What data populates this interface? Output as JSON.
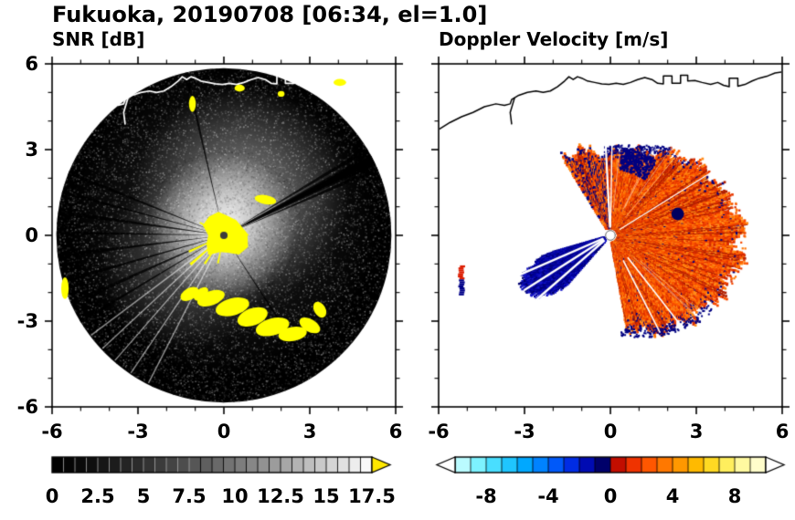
{
  "figure": {
    "title": "Fukuoka, 20190708 [06:34, el=1.0]"
  },
  "chart_data": [
    {
      "type": "heatmap",
      "title": "SNR [dB]",
      "xlim": [
        -6,
        6
      ],
      "ylim": [
        -6,
        6
      ],
      "xticks": [
        -6,
        -3,
        0,
        3,
        6
      ],
      "yticks": [
        6,
        3,
        0,
        -3,
        -6
      ],
      "minor_step": 1,
      "grid": false,
      "colorbar": {
        "range": [
          0,
          17.5
        ],
        "labels": [
          0,
          2.5,
          5,
          7.5,
          10,
          12.5,
          15,
          17.5
        ],
        "segment_step": 0.625,
        "cmap": "grayscale",
        "over_arrow_color": "#ffe800"
      },
      "scene": {
        "disk": {
          "cx": 0,
          "cy": 0,
          "r": 5.85,
          "color": "#000000"
        },
        "center_echo_color": "#ffff00",
        "center_dot_color": "#3c3c3c",
        "dark_spokes": [
          [
            27,
            2.2
          ],
          [
            23.5,
            0.7
          ],
          [
            31,
            0.7
          ],
          [
            103,
            0.5
          ],
          [
            158,
            0.6
          ],
          [
            165,
            0.5
          ],
          [
            172,
            0.8
          ],
          [
            179,
            0.5
          ],
          [
            187,
            0.7
          ],
          [
            196,
            0.6
          ],
          [
            204,
            0.8
          ],
          [
            211,
            0.5
          ],
          [
            -57,
            0.5
          ]
        ],
        "bright_rays": [
          217,
          223,
          229,
          236,
          243
        ],
        "yellow_patches": [
          [
            -0.45,
            -2.2,
            0.5,
            0.25,
            -20
          ],
          [
            0.3,
            -2.5,
            0.6,
            0.3,
            -15
          ],
          [
            1.0,
            -2.85,
            0.55,
            0.3,
            -20
          ],
          [
            1.7,
            -3.2,
            0.6,
            0.3,
            -15
          ],
          [
            2.4,
            -3.45,
            0.5,
            0.25,
            -10
          ],
          [
            3.0,
            -3.15,
            0.4,
            0.22,
            30
          ],
          [
            3.35,
            -2.6,
            0.3,
            0.2,
            60
          ],
          [
            -1.2,
            -2.05,
            0.35,
            0.2,
            -30
          ],
          [
            -0.8,
            -2.05,
            0.3,
            0.18,
            -40
          ],
          [
            -5.55,
            -1.85,
            0.13,
            0.38,
            0
          ],
          [
            1.45,
            1.25,
            0.38,
            0.16,
            10
          ],
          [
            -1.1,
            4.6,
            0.12,
            0.28,
            0
          ],
          [
            0.55,
            5.15,
            0.18,
            0.12,
            0
          ],
          [
            2.0,
            4.95,
            0.12,
            0.1,
            0
          ],
          [
            4.05,
            5.35,
            0.22,
            0.12,
            0
          ]
        ]
      }
    },
    {
      "type": "heatmap",
      "title": "Doppler Velocity [m/s]",
      "xlim": [
        -6,
        6
      ],
      "ylim": [
        -6,
        6
      ],
      "xticks": [
        -6,
        -3,
        0,
        3,
        6
      ],
      "yticks": [
        6,
        3,
        0,
        -3,
        -6
      ],
      "minor_step": 1,
      "grid": false,
      "colorbar": {
        "range": [
          -10,
          10
        ],
        "labels": [
          -8,
          -4,
          0,
          4,
          8
        ],
        "segment_step": 1,
        "under_arrow_color": "#ffffff",
        "over_arrow_color": "#ffffff",
        "cmap_stops": [
          [
            -10,
            "#d8ffff"
          ],
          [
            -8.5,
            "#7df2ff"
          ],
          [
            -7,
            "#2fd4ff"
          ],
          [
            -5.5,
            "#00a8ff"
          ],
          [
            -4,
            "#0070ff"
          ],
          [
            -2.8,
            "#0038f0"
          ],
          [
            -1.8,
            "#0010c8"
          ],
          [
            -0.8,
            "#000080"
          ],
          [
            -0.05,
            "#000048"
          ],
          [
            0.05,
            "#a00000"
          ],
          [
            0.8,
            "#d81800"
          ],
          [
            2,
            "#ff4600"
          ],
          [
            3.2,
            "#ff6e00"
          ],
          [
            4.5,
            "#ff9800"
          ],
          [
            5.8,
            "#ffc400"
          ],
          [
            7,
            "#ffe83c"
          ],
          [
            8.5,
            "#fff9a0"
          ],
          [
            10,
            "#ffffe0"
          ]
        ]
      },
      "scene": {
        "fan": {
          "a0": -80,
          "a1": 122,
          "rmin": 0.28,
          "cp": [
            [
              -80,
              3.3
            ],
            [
              -60,
              3.7
            ],
            [
              -40,
              4.1
            ],
            [
              -25,
              4.35
            ],
            [
              -10,
              4.55
            ],
            [
              5,
              4.45
            ],
            [
              20,
              4.25
            ],
            [
              35,
              3.95
            ],
            [
              50,
              3.6
            ],
            [
              65,
              3.15
            ],
            [
              80,
              2.9
            ],
            [
              95,
              2.8
            ],
            [
              110,
              3.2
            ],
            [
              122,
              3.1
            ]
          ],
          "palette_pos": [
            "#ff5f00",
            "#ff7300",
            "#f74a00",
            "#e83800",
            "#ff8c1a",
            "#d62b00"
          ],
          "streak_dark": "#b22000",
          "navy": "#000080"
        },
        "speckle_zone": {
          "a0": 95,
          "a1": 122,
          "navy_frac": 0.3
        },
        "gap_rays": [
          [
            93,
            2.2,
            0.3,
            3.4
          ],
          [
            89,
            1.4,
            0.3,
            3.2
          ],
          [
            -52,
            1.6,
            1.0,
            4.2
          ],
          [
            -63,
            1.6,
            1.0,
            3.8
          ],
          [
            32,
            1.2,
            0.4,
            4.2
          ]
        ],
        "blue_wedge": {
          "cp": [
            [
              196,
              2.2
            ],
            [
              204,
              3.3
            ],
            [
              212,
              3.6
            ],
            [
              220,
              3.3
            ],
            [
              229,
              2.4
            ]
          ],
          "a0": 196,
          "a1": 229,
          "rmin": 0.25,
          "palette": [
            "#0000a8",
            "#000090",
            "#1515c8",
            "#000070"
          ],
          "white_rays": [
            203.5,
            212.5,
            221
          ]
        },
        "navy_cluster": {
          "a0": 58,
          "a1": 82,
          "r0": 2.3,
          "r1": 3.1
        },
        "dark_spot": [
          2.35,
          0.75,
          0.22
        ],
        "left_patch": {
          "x": -5.2,
          "y0": -1.05,
          "y1": -2.1,
          "w": 0.18,
          "split": -1.5,
          "top_color": "#dd1c00",
          "bottom_color": "#000088"
        },
        "center_dot": {
          "r": 0.17,
          "color": "#ffffff"
        }
      }
    }
  ],
  "coastline": {
    "main": [
      [
        -6.0,
        3.7
      ],
      [
        -5.6,
        3.95
      ],
      [
        -5.2,
        4.15
      ],
      [
        -4.8,
        4.3
      ],
      [
        -4.4,
        4.5
      ],
      [
        -4.0,
        4.6
      ],
      [
        -3.7,
        4.55
      ],
      [
        -3.5,
        4.6
      ],
      [
        -3.45,
        4.75
      ],
      [
        -3.2,
        4.9
      ],
      [
        -2.9,
        5.0
      ],
      [
        -2.6,
        5.05
      ],
      [
        -2.35,
        5.0
      ],
      [
        -2.1,
        5.05
      ],
      [
        -1.85,
        5.2
      ],
      [
        -1.6,
        5.4
      ],
      [
        -1.45,
        5.55
      ],
      [
        -1.3,
        5.45
      ],
      [
        -1.15,
        5.55
      ],
      [
        -1.0,
        5.5
      ],
      [
        -0.8,
        5.4
      ],
      [
        -0.55,
        5.35
      ],
      [
        -0.3,
        5.3
      ],
      [
        -0.05,
        5.28
      ],
      [
        0.2,
        5.32
      ],
      [
        0.45,
        5.28
      ],
      [
        0.7,
        5.35
      ],
      [
        0.95,
        5.45
      ],
      [
        1.2,
        5.52
      ],
      [
        1.45,
        5.45
      ],
      [
        1.65,
        5.32
      ],
      [
        1.85,
        5.3
      ],
      [
        1.85,
        5.58
      ],
      [
        2.15,
        5.58
      ],
      [
        2.15,
        5.32
      ],
      [
        2.45,
        5.32
      ],
      [
        2.45,
        5.6
      ],
      [
        2.7,
        5.6
      ],
      [
        2.7,
        5.4
      ],
      [
        2.95,
        5.42
      ],
      [
        3.2,
        5.35
      ],
      [
        3.5,
        5.28
      ],
      [
        3.75,
        5.35
      ],
      [
        3.95,
        5.25
      ],
      [
        4.15,
        5.2
      ],
      [
        4.15,
        5.5
      ],
      [
        4.45,
        5.5
      ],
      [
        4.45,
        5.22
      ],
      [
        4.7,
        5.28
      ],
      [
        4.95,
        5.4
      ],
      [
        5.2,
        5.5
      ],
      [
        5.5,
        5.58
      ],
      [
        5.75,
        5.68
      ],
      [
        6.0,
        5.72
      ]
    ],
    "inlet": [
      [
        -3.35,
        4.8
      ],
      [
        -3.5,
        4.3
      ],
      [
        -3.45,
        3.9
      ]
    ]
  }
}
